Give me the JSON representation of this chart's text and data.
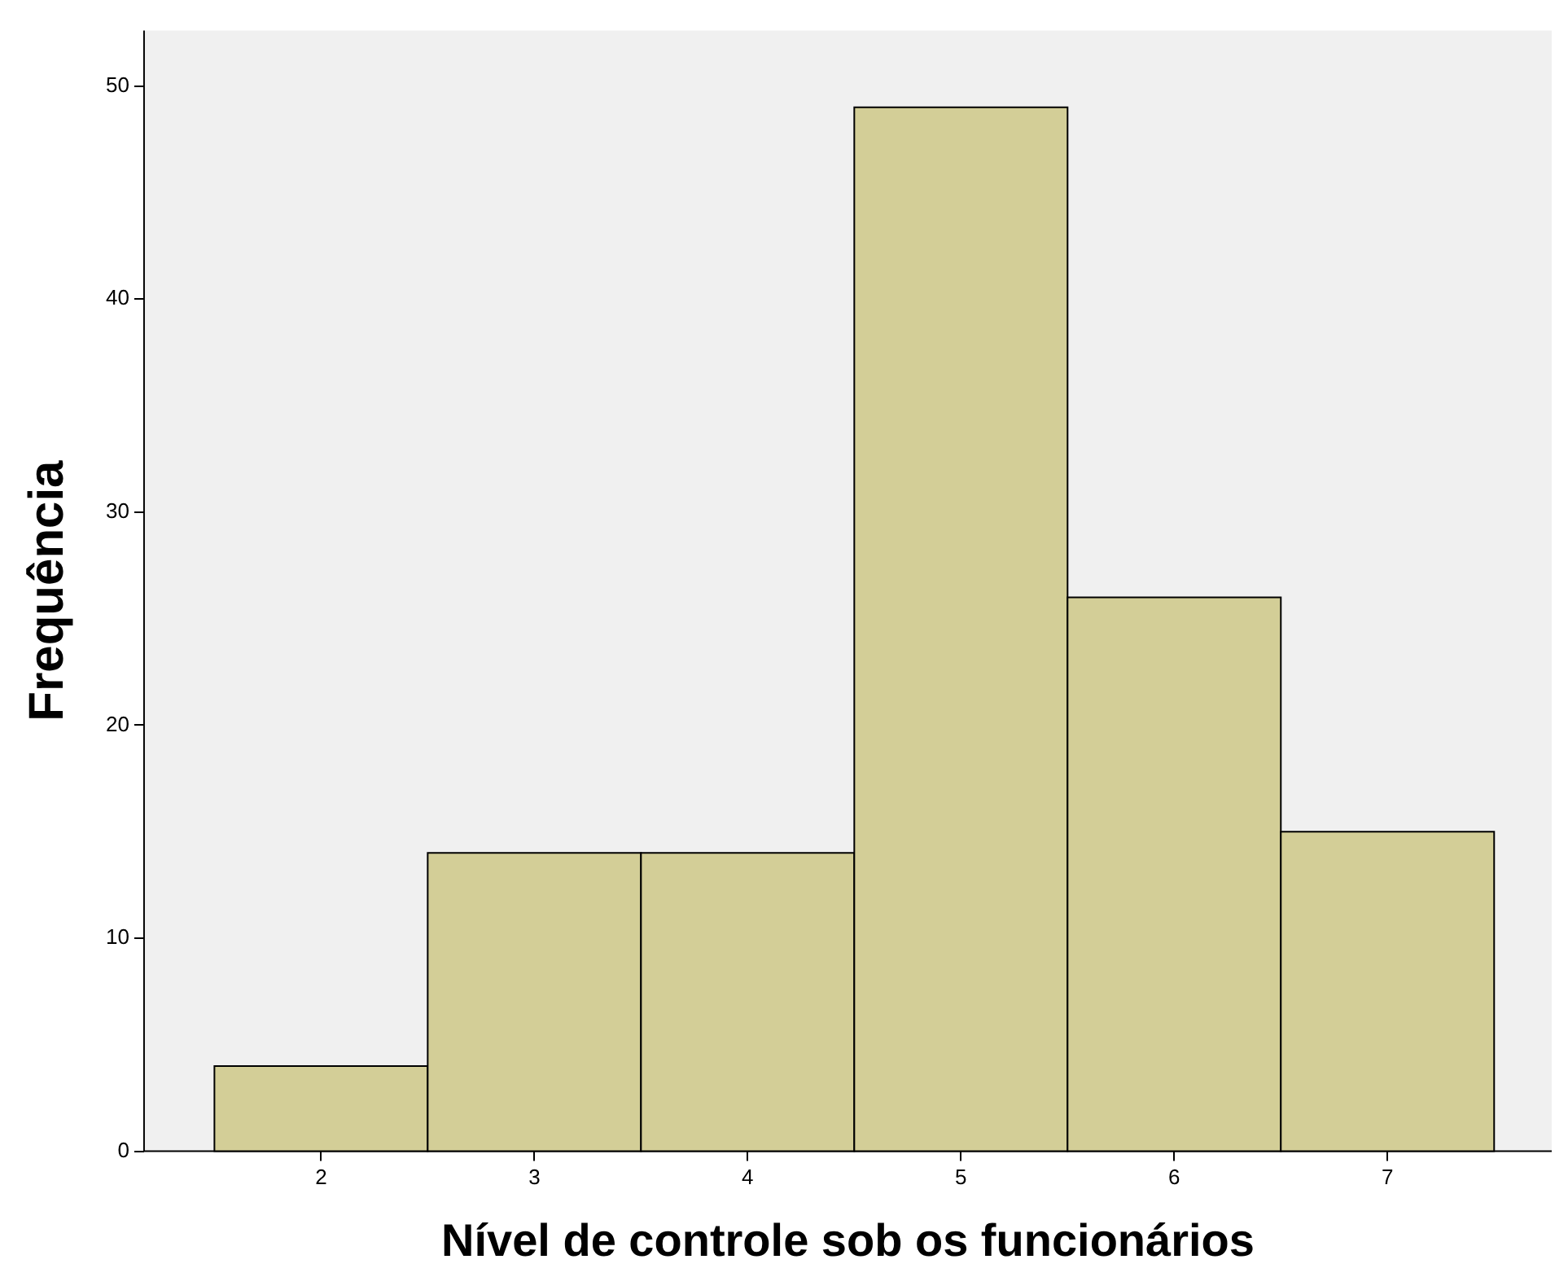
{
  "chart_data": {
    "type": "histogram",
    "xlabel": "Nível de controle sob os funcionários",
    "ylabel": "Frequência",
    "bins": [
      1.5,
      2.5,
      3.5,
      4.5,
      5.5,
      6.5,
      7.5
    ],
    "values": [
      4,
      14,
      14,
      49,
      26,
      15
    ],
    "color": "#d3ce97",
    "xlim": [
      1.17,
      7.77
    ],
    "xticks": [
      2,
      3,
      4,
      5,
      6,
      7
    ],
    "ylim": [
      0,
      52.6
    ],
    "yticks": [
      0,
      10,
      20,
      30,
      40,
      50
    ],
    "grid": false,
    "legend": false
  }
}
